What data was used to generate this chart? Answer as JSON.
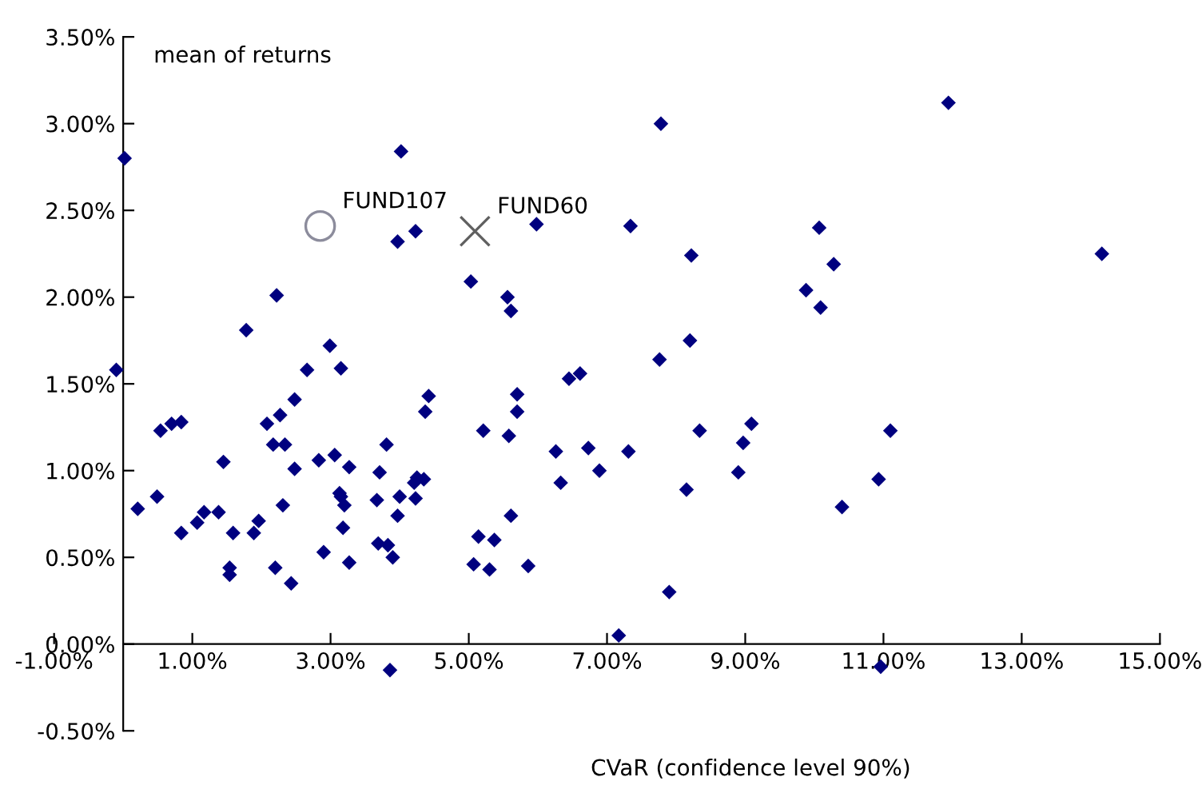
{
  "chart_data": {
    "type": "scatter",
    "xlabel": "CVaR (confidence level 90%)",
    "ylabel": "mean of returns",
    "xlim": [
      -1,
      15
    ],
    "ylim": [
      -0.5,
      3.5
    ],
    "xticks": [
      {
        "value": -1,
        "label": "-1.00%"
      },
      {
        "value": 1,
        "label": "1.00%"
      },
      {
        "value": 3,
        "label": "3.00%"
      },
      {
        "value": 5,
        "label": "5.00%"
      },
      {
        "value": 7,
        "label": "7.00%"
      },
      {
        "value": 9,
        "label": "9.00%"
      },
      {
        "value": 11,
        "label": "11.00%"
      },
      {
        "value": 13,
        "label": "13.00%"
      },
      {
        "value": 15,
        "label": "15.00%"
      }
    ],
    "yticks": [
      {
        "value": -0.5,
        "label": "-0.50%"
      },
      {
        "value": 0,
        "label": "0.00%"
      },
      {
        "value": 0.5,
        "label": "0.50%"
      },
      {
        "value": 1,
        "label": "1.00%"
      },
      {
        "value": 1.5,
        "label": "1.50%"
      },
      {
        "value": 2,
        "label": "2.00%"
      },
      {
        "value": 2.5,
        "label": "2.50%"
      },
      {
        "value": 3,
        "label": "3.00%"
      },
      {
        "value": 3.5,
        "label": "3.50%"
      }
    ],
    "grid": false,
    "series": [
      {
        "color": "#00007f",
        "marker": "diamond",
        "x": [
          0.02,
          -0.1,
          4.02,
          3.97,
          4.23,
          5.98,
          7.34,
          2.22,
          1.78,
          5.03,
          5.56,
          5.61,
          2.99,
          2.66,
          3.15,
          7.78,
          11.94,
          8.22,
          10.07,
          10.28,
          9.88,
          10.09,
          14.16,
          8.2,
          7.76,
          0.21,
          0.49,
          0.54,
          0.7,
          0.84,
          0.84,
          1.07,
          1.17,
          1.38,
          1.45,
          1.59,
          1.54,
          1.54,
          1.89,
          1.96,
          2.08,
          2.27,
          2.17,
          2.34,
          2.48,
          2.48,
          2.31,
          2.2,
          2.43,
          2.83,
          2.9,
          3.06,
          3.27,
          3.13,
          3.15,
          3.2,
          3.18,
          3.27,
          3.71,
          3.81,
          3.67,
          4.0,
          3.97,
          3.69,
          3.83,
          3.9,
          3.86,
          4.23,
          4.21,
          4.25,
          4.35,
          4.37,
          4.42,
          5.21,
          5.14,
          5.37,
          5.07,
          5.3,
          5.58,
          5.61,
          5.7,
          5.7,
          5.86,
          6.26,
          6.33,
          6.45,
          6.61,
          6.73,
          6.89,
          7.31,
          7.17,
          8.34,
          9.09,
          8.97,
          8.9,
          8.15,
          11.1,
          10.93,
          10.4,
          7.9,
          10.96
        ],
        "values": [
          2.8,
          1.58,
          2.84,
          2.32,
          2.38,
          2.42,
          2.41,
          2.01,
          1.81,
          2.09,
          2.0,
          1.92,
          1.72,
          1.58,
          1.59,
          3.0,
          3.12,
          2.24,
          2.4,
          2.19,
          2.04,
          1.94,
          2.25,
          1.75,
          1.64,
          0.78,
          0.85,
          1.23,
          1.27,
          1.28,
          0.64,
          0.7,
          0.76,
          0.76,
          1.05,
          0.64,
          0.44,
          0.4,
          0.64,
          0.71,
          1.27,
          1.32,
          1.15,
          1.15,
          1.41,
          1.01,
          0.8,
          0.44,
          0.35,
          1.06,
          0.53,
          1.09,
          1.02,
          0.87,
          0.85,
          0.8,
          0.67,
          0.47,
          0.99,
          1.15,
          0.83,
          0.85,
          0.74,
          0.58,
          0.57,
          0.5,
          -0.15,
          0.84,
          0.93,
          0.96,
          0.95,
          1.34,
          1.43,
          1.23,
          0.62,
          0.6,
          0.46,
          0.43,
          1.2,
          0.74,
          1.44,
          1.34,
          0.45,
          1.11,
          0.93,
          1.53,
          1.56,
          1.13,
          1.0,
          1.11,
          0.05,
          1.23,
          1.27,
          1.16,
          0.99,
          0.89,
          1.23,
          0.95,
          0.79,
          0.3,
          -0.13
        ]
      },
      {
        "name": "FUND107",
        "color": "#8c8c9c",
        "marker": "circle",
        "x": [
          2.85
        ],
        "values": [
          2.41
        ]
      },
      {
        "name": "FUND60",
        "color": "#606060",
        "marker": "cross",
        "x": [
          5.09
        ],
        "values": [
          2.38
        ]
      }
    ]
  }
}
